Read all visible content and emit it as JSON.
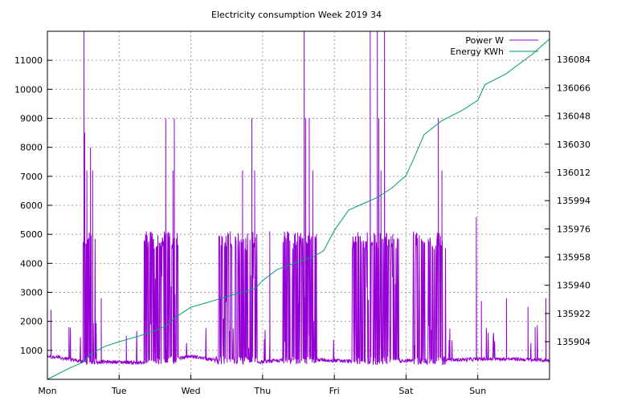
{
  "chart_data": {
    "type": "line",
    "title": "Electricity consumption Week 2019 34",
    "xlabel": "",
    "ylabel": "",
    "y2label": "",
    "x_tick_labels": [
      "Mon",
      "Tue",
      "Wed",
      "Thu",
      "Fri",
      "Sat",
      "Sun"
    ],
    "x_range_days": [
      0,
      7
    ],
    "ylim": [
      0,
      12000
    ],
    "y_ticks": [
      1000,
      2000,
      3000,
      4000,
      5000,
      6000,
      7000,
      8000,
      9000,
      10000,
      11000
    ],
    "y2lim": [
      135880,
      136102
    ],
    "y2_ticks": [
      135904,
      135922,
      135940,
      135958,
      135976,
      135994,
      136012,
      136030,
      136048,
      136066,
      136084
    ],
    "grid": true,
    "legend_position": "top-right",
    "series": [
      {
        "name": "Power W",
        "axis": "y",
        "color": "#9400d3",
        "baseline": [
          [
            0.0,
            800
          ],
          [
            0.3,
            700
          ],
          [
            0.5,
            600
          ],
          [
            1.0,
            600
          ],
          [
            1.5,
            550
          ],
          [
            2.0,
            800
          ],
          [
            2.5,
            600
          ],
          [
            3.0,
            600
          ],
          [
            3.5,
            700
          ],
          [
            4.0,
            650
          ],
          [
            4.5,
            600
          ],
          [
            5.0,
            650
          ],
          [
            5.5,
            650
          ],
          [
            6.0,
            700
          ],
          [
            6.5,
            700
          ],
          [
            7.0,
            650
          ]
        ],
        "active_periods": [
          {
            "start": 0.5,
            "end": 0.68,
            "low": 500,
            "high": 5100
          },
          {
            "start": 1.35,
            "end": 1.82,
            "low": 500,
            "high": 5100
          },
          {
            "start": 2.35,
            "end": 2.92,
            "low": 500,
            "high": 5100
          },
          {
            "start": 3.28,
            "end": 3.75,
            "low": 500,
            "high": 5100
          },
          {
            "start": 4.25,
            "end": 4.9,
            "low": 500,
            "high": 5100
          },
          {
            "start": 5.1,
            "end": 5.55,
            "low": 500,
            "high": 5100
          }
        ],
        "spikes": [
          [
            0.51,
            12000
          ],
          [
            0.52,
            8500
          ],
          [
            0.55,
            7200
          ],
          [
            0.6,
            8000
          ],
          [
            0.63,
            7200
          ],
          [
            0.75,
            2800
          ],
          [
            1.38,
            5100
          ],
          [
            1.65,
            9000
          ],
          [
            1.75,
            7200
          ],
          [
            1.77,
            9000
          ],
          [
            2.72,
            7200
          ],
          [
            2.85,
            9000
          ],
          [
            2.89,
            7200
          ],
          [
            3.58,
            12000
          ],
          [
            3.6,
            9000
          ],
          [
            3.65,
            9000
          ],
          [
            3.7,
            7200
          ],
          [
            4.5,
            12000
          ],
          [
            4.6,
            12000
          ],
          [
            4.62,
            9000
          ],
          [
            4.65,
            7200
          ],
          [
            4.7,
            12000
          ],
          [
            5.45,
            9000
          ],
          [
            5.5,
            7200
          ],
          [
            5.98,
            5600
          ],
          [
            6.4,
            2800
          ],
          [
            6.7,
            2500
          ],
          [
            6.95,
            2800
          ],
          [
            0.05,
            2400
          ],
          [
            0.3,
            1800
          ],
          [
            1.1,
            1500
          ],
          [
            2.55,
            5100
          ],
          [
            3.1,
            5100
          ],
          [
            4.3,
            2000
          ],
          [
            6.05,
            2700
          ],
          [
            6.8,
            1800
          ]
        ]
      },
      {
        "name": "Energy KWh",
        "axis": "y2",
        "color": "#009e73",
        "points": [
          [
            0.0,
            135880
          ],
          [
            0.3,
            135887
          ],
          [
            0.5,
            135891
          ],
          [
            0.6,
            135896
          ],
          [
            0.8,
            135901
          ],
          [
            1.0,
            135904
          ],
          [
            1.3,
            135908
          ],
          [
            1.5,
            135911
          ],
          [
            1.65,
            135914
          ],
          [
            1.8,
            135920
          ],
          [
            2.0,
            135926
          ],
          [
            2.3,
            135930
          ],
          [
            2.6,
            135934
          ],
          [
            2.9,
            135938
          ],
          [
            3.0,
            135943
          ],
          [
            3.2,
            135950
          ],
          [
            3.5,
            135955
          ],
          [
            3.7,
            135958
          ],
          [
            3.85,
            135962
          ],
          [
            4.0,
            135975
          ],
          [
            4.2,
            135988
          ],
          [
            4.4,
            135992
          ],
          [
            4.6,
            135996
          ],
          [
            4.8,
            136002
          ],
          [
            5.0,
            136010
          ],
          [
            5.1,
            136020
          ],
          [
            5.25,
            136036
          ],
          [
            5.5,
            136045
          ],
          [
            5.8,
            136052
          ],
          [
            6.0,
            136058
          ],
          [
            6.1,
            136068
          ],
          [
            6.4,
            136075
          ],
          [
            6.6,
            136082
          ],
          [
            6.75,
            136087
          ],
          [
            7.0,
            136097
          ]
        ]
      }
    ]
  }
}
